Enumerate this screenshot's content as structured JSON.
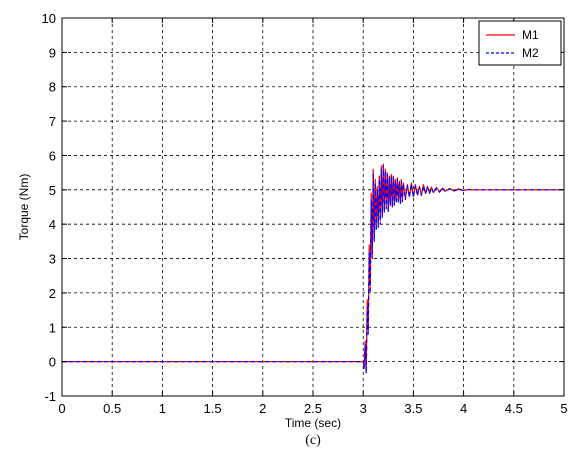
{
  "chart_data": {
    "type": "line",
    "xlabel": "Time (sec)",
    "ylabel": "Torque (Nm)",
    "caption": "(c)",
    "xlim": [
      0,
      5
    ],
    "ylim": [
      -1,
      10
    ],
    "x_ticks": [
      "0",
      "0.5",
      "1",
      "1.5",
      "2",
      "2.5",
      "3",
      "3.5",
      "4",
      "4.5",
      "5"
    ],
    "y_ticks": [
      "-1",
      "0",
      "1",
      "2",
      "3",
      "4",
      "5",
      "6",
      "7",
      "8",
      "9",
      "10"
    ],
    "grid": true,
    "legend_position": "top-right",
    "series": [
      {
        "name": "M1",
        "color": "#ff0000",
        "style": "solid",
        "points": [
          [
            0,
            0
          ],
          [
            3.0,
            0
          ],
          [
            3.01,
            -0.1
          ],
          [
            3.02,
            0.6
          ],
          [
            3.03,
            -0.3
          ],
          [
            3.04,
            1.8
          ],
          [
            3.05,
            0.9
          ],
          [
            3.06,
            3.4
          ],
          [
            3.07,
            2.2
          ],
          [
            3.08,
            4.9
          ],
          [
            3.09,
            3.1
          ],
          [
            3.1,
            5.6
          ],
          [
            3.11,
            3.6
          ],
          [
            3.12,
            5.3
          ],
          [
            3.13,
            3.9
          ],
          [
            3.14,
            5.1
          ],
          [
            3.15,
            4.0
          ],
          [
            3.16,
            5.4
          ],
          [
            3.17,
            4.1
          ],
          [
            3.18,
            5.7
          ],
          [
            3.19,
            4.3
          ],
          [
            3.2,
            5.75
          ],
          [
            3.21,
            4.4
          ],
          [
            3.22,
            5.6
          ],
          [
            3.23,
            4.5
          ],
          [
            3.24,
            5.5
          ],
          [
            3.25,
            4.4
          ],
          [
            3.26,
            5.4
          ],
          [
            3.27,
            4.6
          ],
          [
            3.28,
            5.45
          ],
          [
            3.29,
            4.55
          ],
          [
            3.3,
            5.4
          ],
          [
            3.31,
            4.6
          ],
          [
            3.32,
            5.3
          ],
          [
            3.33,
            4.65
          ],
          [
            3.34,
            5.35
          ],
          [
            3.35,
            4.7
          ],
          [
            3.36,
            5.25
          ],
          [
            3.37,
            4.65
          ],
          [
            3.38,
            5.3
          ],
          [
            3.39,
            4.7
          ],
          [
            3.4,
            5.2
          ],
          [
            3.42,
            4.75
          ],
          [
            3.44,
            5.15
          ],
          [
            3.46,
            4.8
          ],
          [
            3.48,
            5.2
          ],
          [
            3.5,
            4.8
          ],
          [
            3.52,
            5.15
          ],
          [
            3.54,
            4.85
          ],
          [
            3.56,
            5.1
          ],
          [
            3.58,
            4.85
          ],
          [
            3.6,
            5.15
          ],
          [
            3.62,
            4.9
          ],
          [
            3.64,
            5.1
          ],
          [
            3.66,
            4.9
          ],
          [
            3.68,
            5.08
          ],
          [
            3.7,
            4.92
          ],
          [
            3.73,
            5.07
          ],
          [
            3.76,
            4.94
          ],
          [
            3.79,
            5.05
          ],
          [
            3.82,
            4.96
          ],
          [
            3.86,
            5.04
          ],
          [
            3.9,
            4.97
          ],
          [
            3.95,
            5.03
          ],
          [
            4.0,
            4.98
          ],
          [
            4.05,
            5.01
          ],
          [
            4.1,
            5.0
          ],
          [
            5.0,
            5.0
          ]
        ]
      },
      {
        "name": "M2",
        "color": "#0000ff",
        "style": "dashed",
        "points": [
          [
            0,
            0
          ],
          [
            3.0,
            0
          ],
          [
            3.01,
            -0.2
          ],
          [
            3.02,
            0.5
          ],
          [
            3.03,
            -0.35
          ],
          [
            3.04,
            1.6
          ],
          [
            3.05,
            0.8
          ],
          [
            3.06,
            3.2
          ],
          [
            3.07,
            2.0
          ],
          [
            3.08,
            4.7
          ],
          [
            3.09,
            3.0
          ],
          [
            3.1,
            5.5
          ],
          [
            3.11,
            3.5
          ],
          [
            3.12,
            5.2
          ],
          [
            3.13,
            3.8
          ],
          [
            3.14,
            5.0
          ],
          [
            3.15,
            3.9
          ],
          [
            3.16,
            5.3
          ],
          [
            3.17,
            4.0
          ],
          [
            3.18,
            5.6
          ],
          [
            3.19,
            4.2
          ],
          [
            3.2,
            5.7
          ],
          [
            3.21,
            4.35
          ],
          [
            3.22,
            5.55
          ],
          [
            3.23,
            4.45
          ],
          [
            3.24,
            5.45
          ],
          [
            3.25,
            4.35
          ],
          [
            3.26,
            5.35
          ],
          [
            3.27,
            4.55
          ],
          [
            3.28,
            5.4
          ],
          [
            3.29,
            4.5
          ],
          [
            3.3,
            5.35
          ],
          [
            3.31,
            4.55
          ],
          [
            3.32,
            5.25
          ],
          [
            3.33,
            4.6
          ],
          [
            3.34,
            5.3
          ],
          [
            3.35,
            4.65
          ],
          [
            3.36,
            5.2
          ],
          [
            3.37,
            4.6
          ],
          [
            3.38,
            5.25
          ],
          [
            3.39,
            4.65
          ],
          [
            3.4,
            5.18
          ],
          [
            3.42,
            4.72
          ],
          [
            3.44,
            5.12
          ],
          [
            3.46,
            4.78
          ],
          [
            3.48,
            5.18
          ],
          [
            3.5,
            4.78
          ],
          [
            3.52,
            5.12
          ],
          [
            3.54,
            4.83
          ],
          [
            3.56,
            5.08
          ],
          [
            3.58,
            4.84
          ],
          [
            3.6,
            5.12
          ],
          [
            3.62,
            4.88
          ],
          [
            3.64,
            5.08
          ],
          [
            3.66,
            4.89
          ],
          [
            3.68,
            5.06
          ],
          [
            3.7,
            4.91
          ],
          [
            3.73,
            5.06
          ],
          [
            3.76,
            4.93
          ],
          [
            3.79,
            5.04
          ],
          [
            3.82,
            4.95
          ],
          [
            3.86,
            5.03
          ],
          [
            3.9,
            4.96
          ],
          [
            3.95,
            5.02
          ],
          [
            4.0,
            4.98
          ],
          [
            4.05,
            5.01
          ],
          [
            4.1,
            5.0
          ],
          [
            5.0,
            5.0
          ]
        ]
      }
    ]
  }
}
